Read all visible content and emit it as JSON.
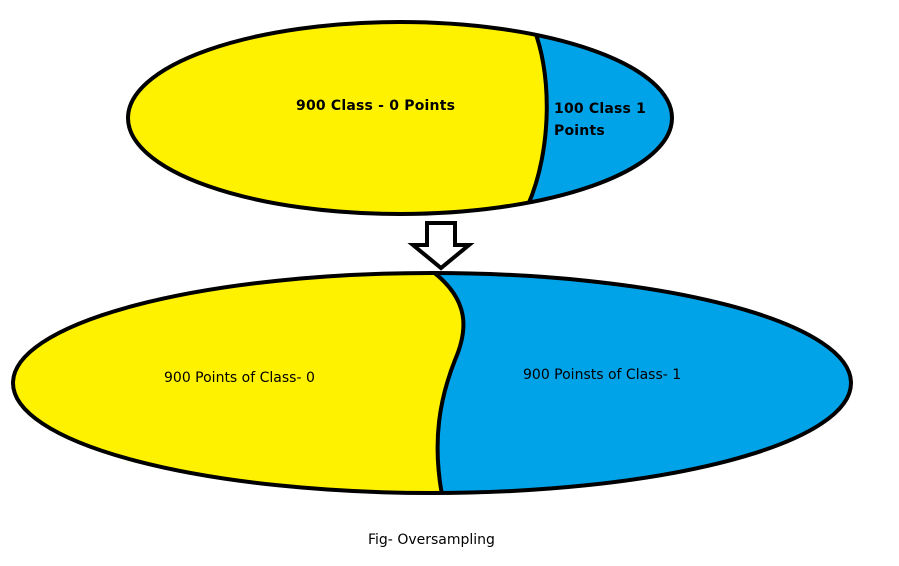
{
  "diagram": {
    "title": "Oversampling",
    "before": {
      "majority_label": "900 Class - 0 Points",
      "minority_label": "100 Class 1 Points"
    },
    "after": {
      "class0_label": "900 Points of Class- 0",
      "class1_label": "900 Poinsts of Class- 1"
    },
    "caption": "Fig- Oversampling",
    "colors": {
      "class0_fill": "#FFF200",
      "class1_fill": "#00A2E8",
      "outline": "#000000"
    }
  }
}
